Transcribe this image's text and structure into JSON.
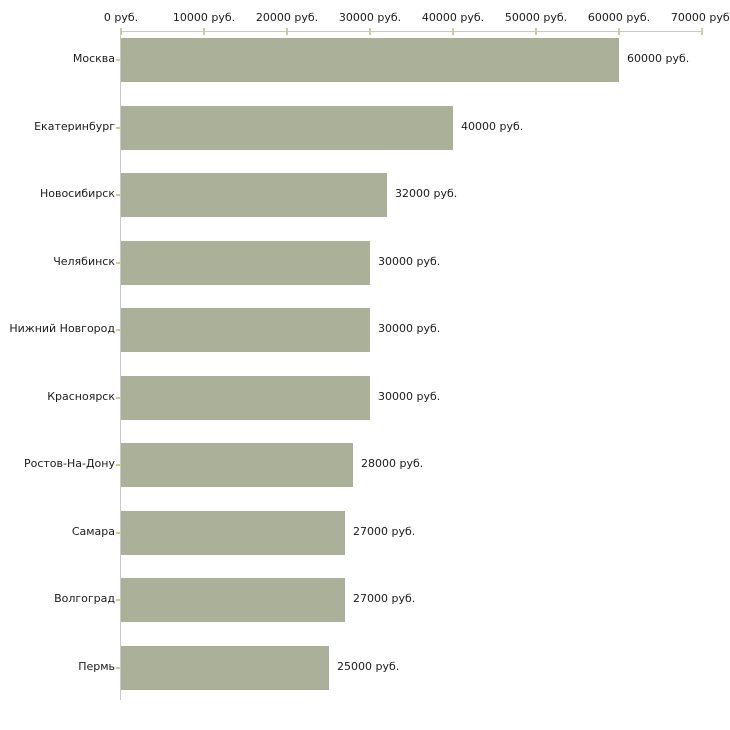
{
  "chart_data": {
    "type": "bar",
    "orientation": "horizontal",
    "title": "",
    "xlabel": "",
    "ylabel": "",
    "unit": "руб.",
    "xlim": [
      0,
      70000
    ],
    "grid": "off",
    "legend": "none",
    "categories": [
      "Москва",
      "Екатеринбург",
      "Новосибирск",
      "Челябинск",
      "Нижний Новгород",
      "Красноярск",
      "Ростов-На-Дону",
      "Самара",
      "Волгоград",
      "Пермь"
    ],
    "values": [
      60000,
      40000,
      32000,
      30000,
      30000,
      30000,
      28000,
      27000,
      27000,
      25000
    ],
    "value_labels": [
      "60000 руб.",
      "40000 руб.",
      "32000 руб.",
      "30000 руб.",
      "30000 руб.",
      "30000 руб.",
      "28000 руб.",
      "27000 руб.",
      "27000 руб.",
      "25000 руб."
    ],
    "x_tick_labels": [
      "0 руб.",
      "10000 руб.",
      "20000 руб.",
      "30000 руб.",
      "40000 руб.",
      "50000 руб.",
      "60000 руб.",
      "70000 руб."
    ],
    "colors": {
      "bar": "#aab198",
      "axis_line": "#c9c9c9",
      "tick_mark": "#cccc99",
      "text": "#1c1c1c",
      "background": "#ffffff"
    }
  }
}
